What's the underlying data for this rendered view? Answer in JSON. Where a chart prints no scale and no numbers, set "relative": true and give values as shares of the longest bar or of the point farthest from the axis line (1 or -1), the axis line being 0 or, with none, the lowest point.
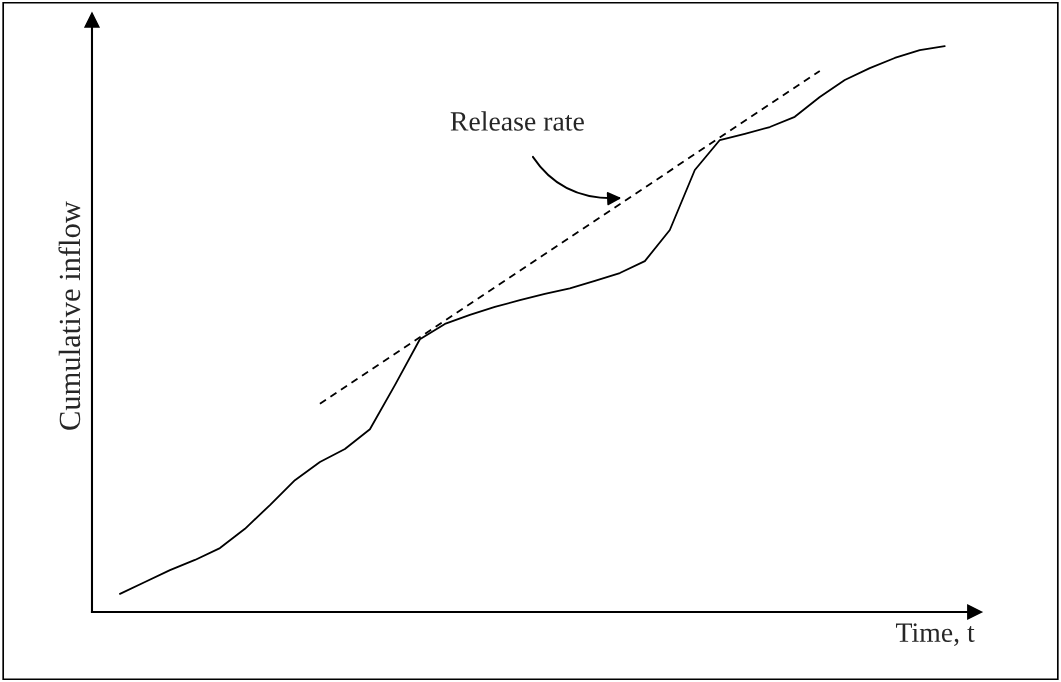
{
  "chart_data": {
    "type": "line",
    "relative": true,
    "xlabel": "Time, t",
    "ylabel": "Cumulative inflow",
    "categories": [
      null,
      null,
      null,
      null,
      null,
      null,
      null,
      null,
      null,
      null,
      null,
      null,
      null,
      null,
      null,
      null,
      null,
      null,
      null,
      null,
      null,
      null,
      null,
      null,
      null,
      null,
      null,
      null,
      null,
      null,
      null,
      null,
      null,
      null
    ],
    "series": [
      {
        "color": "#000000",
        "line_style": "solid",
        "values": [
          0.032,
          0.053,
          0.074,
          0.092,
          0.113,
          0.147,
          0.189,
          0.233,
          0.265,
          0.288,
          0.323,
          0.401,
          0.482,
          0.509,
          0.525,
          0.539,
          0.551,
          0.562,
          0.572,
          0.585,
          0.599,
          0.62,
          0.675,
          0.781,
          0.834,
          0.845,
          0.857,
          0.875,
          0.91,
          0.94,
          0.961,
          0.979,
          0.993,
          1
        ]
      },
      {
        "color": "#000000",
        "line_style": "dashed",
        "values": [
          null,
          null,
          null,
          null,
          null,
          null,
          null,
          null,
          0.368,
          null,
          null,
          null,
          null,
          null,
          null,
          null,
          null,
          null,
          null,
          null,
          null,
          null,
          null,
          null,
          null,
          null,
          null,
          null,
          0.956,
          null,
          null,
          null,
          null,
          null
        ]
      }
    ],
    "annotations": [
      "Release rate"
    ],
    "grid": false,
    "legend": false,
    "marker": "none"
  }
}
